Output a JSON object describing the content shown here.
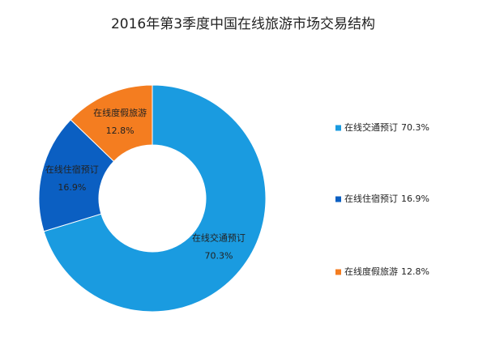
{
  "chart_data": {
    "type": "donut",
    "title": "2016年第3季度中国在线旅游市场交易结构",
    "categories": [
      "在线交通预订",
      "在线住宿预订",
      "在线度假旅游"
    ],
    "values": [
      70.3,
      16.9,
      12.8
    ],
    "value_labels": [
      "70.3%",
      "16.9%",
      "12.8%"
    ],
    "colors": [
      "#1a9be0",
      "#0b5fc2",
      "#f47d20"
    ],
    "legend": "right"
  }
}
